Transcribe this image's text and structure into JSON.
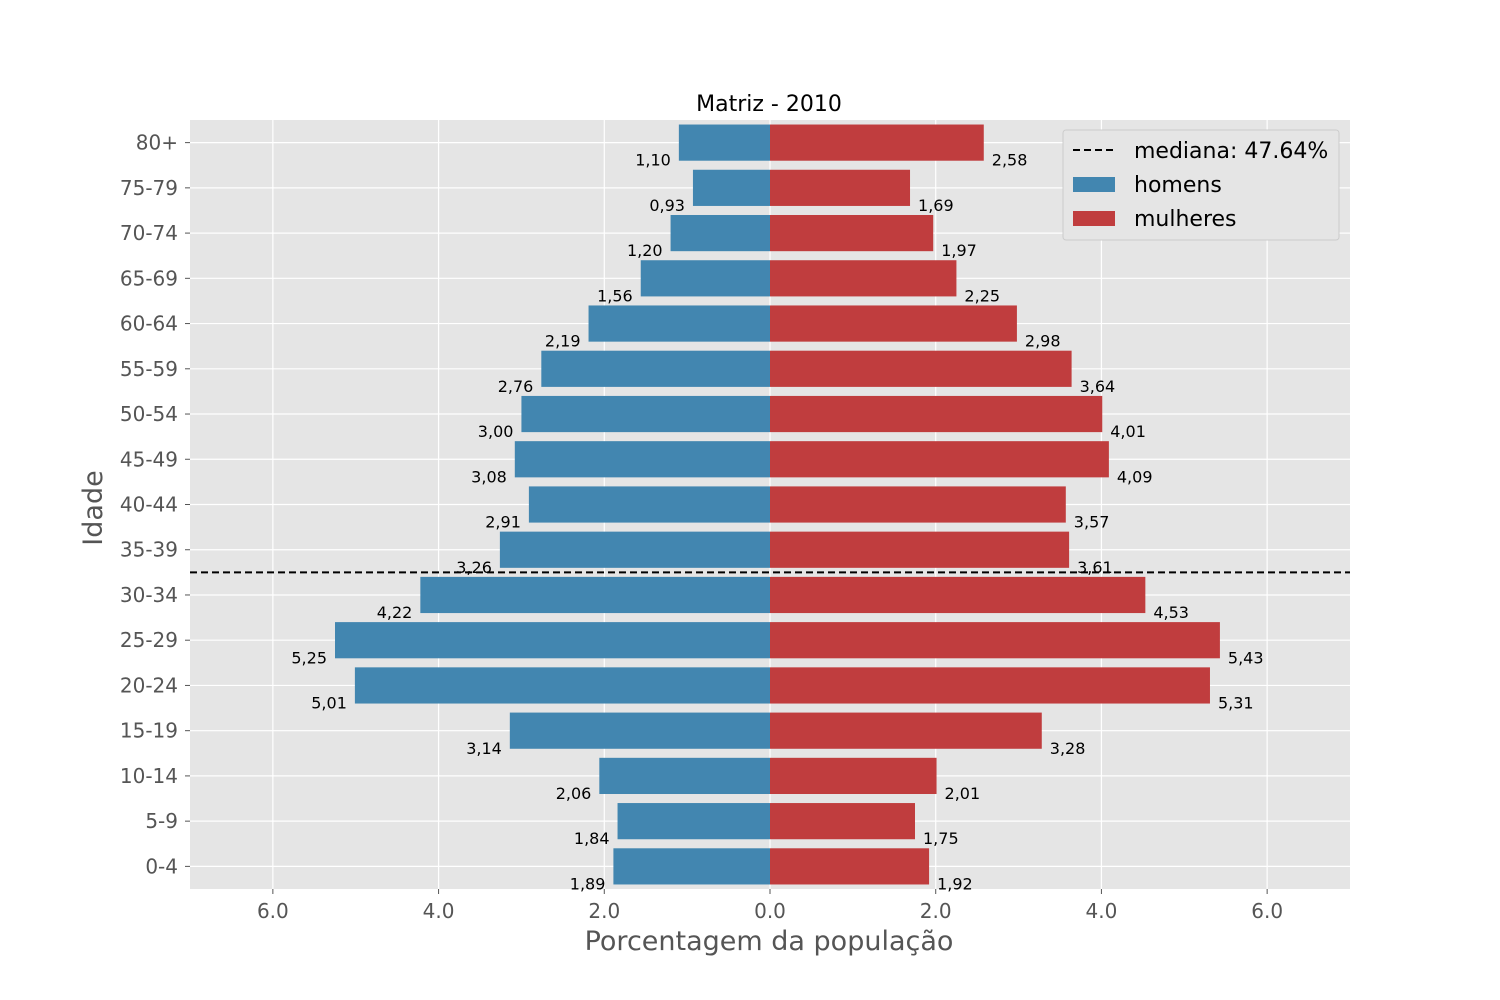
{
  "chart_data": {
    "type": "bar",
    "orientation": "horizontal",
    "title": "Matriz - 2010",
    "xlabel": "Porcentagem da população",
    "ylabel": "Idade",
    "xlim": [
      -7,
      7
    ],
    "xticks": [
      -6,
      -4,
      -2,
      0,
      2,
      4,
      6
    ],
    "xtick_labels": [
      "6.0",
      "4.0",
      "2.0",
      "0.0",
      "2.0",
      "4.0",
      "6.0"
    ],
    "grid": true,
    "legend_position": "top-right",
    "categories": [
      "0-4",
      "5-9",
      "10-14",
      "15-19",
      "20-24",
      "25-29",
      "30-34",
      "35-39",
      "40-44",
      "45-49",
      "50-54",
      "55-59",
      "60-64",
      "65-69",
      "70-74",
      "75-79",
      "80+"
    ],
    "series": [
      {
        "name": "homens",
        "color": "#4286b0",
        "values": [
          1.89,
          1.84,
          2.06,
          3.14,
          5.01,
          5.25,
          4.22,
          3.26,
          2.91,
          3.08,
          3.0,
          2.76,
          2.19,
          1.56,
          1.2,
          0.93,
          1.1
        ],
        "labels": [
          "1,89",
          "1,84",
          "2,06",
          "3,14",
          "5,01",
          "5,25",
          "4,22",
          "3,26",
          "2,91",
          "3,08",
          "3,00",
          "2,76",
          "2,19",
          "1,56",
          "1,20",
          "0,93",
          "1,10"
        ]
      },
      {
        "name": "mulheres",
        "color": "#c03d3e",
        "values": [
          1.92,
          1.75,
          2.01,
          3.28,
          5.31,
          5.43,
          4.53,
          3.61,
          3.57,
          4.09,
          4.01,
          3.64,
          2.98,
          2.25,
          1.97,
          1.69,
          2.58
        ],
        "labels": [
          "1,92",
          "1,75",
          "2,01",
          "3,28",
          "5,31",
          "5,43",
          "4,53",
          "3,61",
          "3,57",
          "4,09",
          "4,01",
          "3,64",
          "2,98",
          "2,25",
          "1,97",
          "1,69",
          "2,58"
        ]
      }
    ],
    "median_line": {
      "label": "mediana: 47.64%",
      "between_categories": [
        "30-34",
        "35-39"
      ],
      "style": "dashed",
      "color": "#000000"
    }
  }
}
